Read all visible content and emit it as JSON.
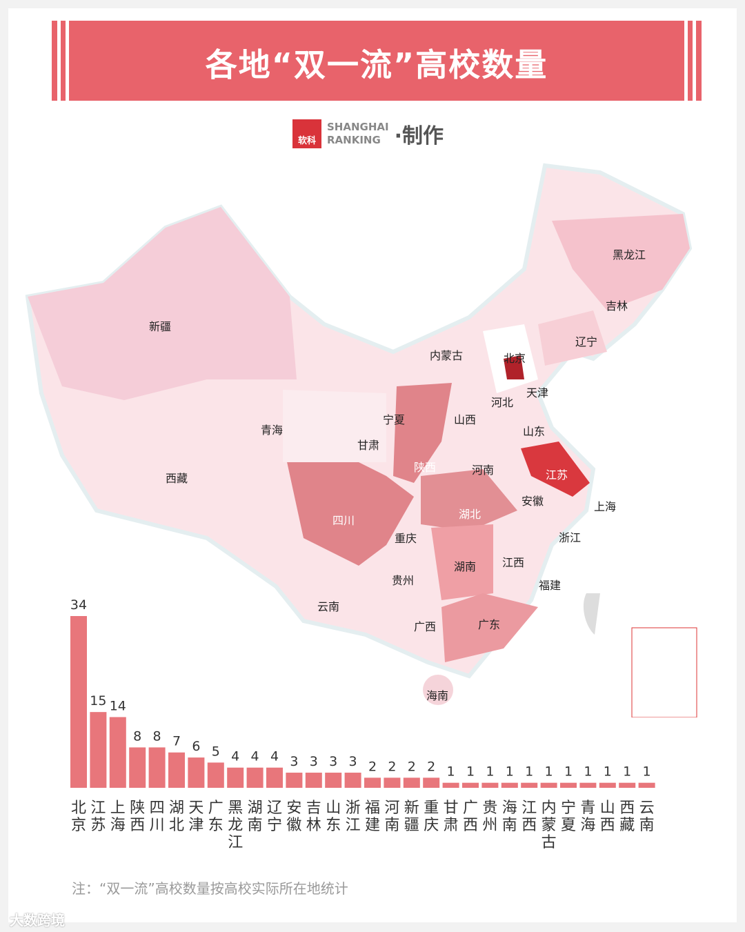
{
  "title": "各地“双一流”高校数量",
  "logo": {
    "mark": "软科",
    "line1": "SHANGHAI",
    "line2": "RANKING",
    "suffix": "·制作"
  },
  "map": {
    "provinces": [
      "新疆",
      "西藏",
      "青海",
      "甘肃",
      "宁夏",
      "内蒙古",
      "黑龙江",
      "吉林",
      "辽宁",
      "北京",
      "天津",
      "河北",
      "山西",
      "山东",
      "陕西",
      "河南",
      "江苏",
      "安徽",
      "上海",
      "四川",
      "湖北",
      "重庆",
      "浙江",
      "湖南",
      "江西",
      "贵州",
      "福建",
      "云南",
      "广西",
      "广东",
      "海南"
    ]
  },
  "chart_data": {
    "type": "bar",
    "title": "各地“双一流”高校数量",
    "categories": [
      "北京",
      "江苏",
      "上海",
      "陕西",
      "四川",
      "湖北",
      "天津",
      "广东",
      "黑龙江",
      "湖南",
      "辽宁",
      "安徽",
      "吉林",
      "山东",
      "浙江",
      "福建",
      "河南",
      "新疆",
      "重庆",
      "甘肃",
      "广西",
      "贵州",
      "海南",
      "江西",
      "内蒙古",
      "宁夏",
      "青海",
      "山西",
      "西藏",
      "云南"
    ],
    "values": [
      34,
      15,
      14,
      8,
      8,
      7,
      6,
      5,
      4,
      4,
      4,
      3,
      3,
      3,
      3,
      2,
      2,
      2,
      2,
      1,
      1,
      1,
      1,
      1,
      1,
      1,
      1,
      1,
      1,
      1
    ],
    "xlabel": "",
    "ylabel": "",
    "ylim": [
      0,
      34
    ],
    "bar_color": "#e8767b"
  },
  "note": "注：“双一流”高校数量按高校实际所在地统计",
  "watermark": "大数跨境"
}
